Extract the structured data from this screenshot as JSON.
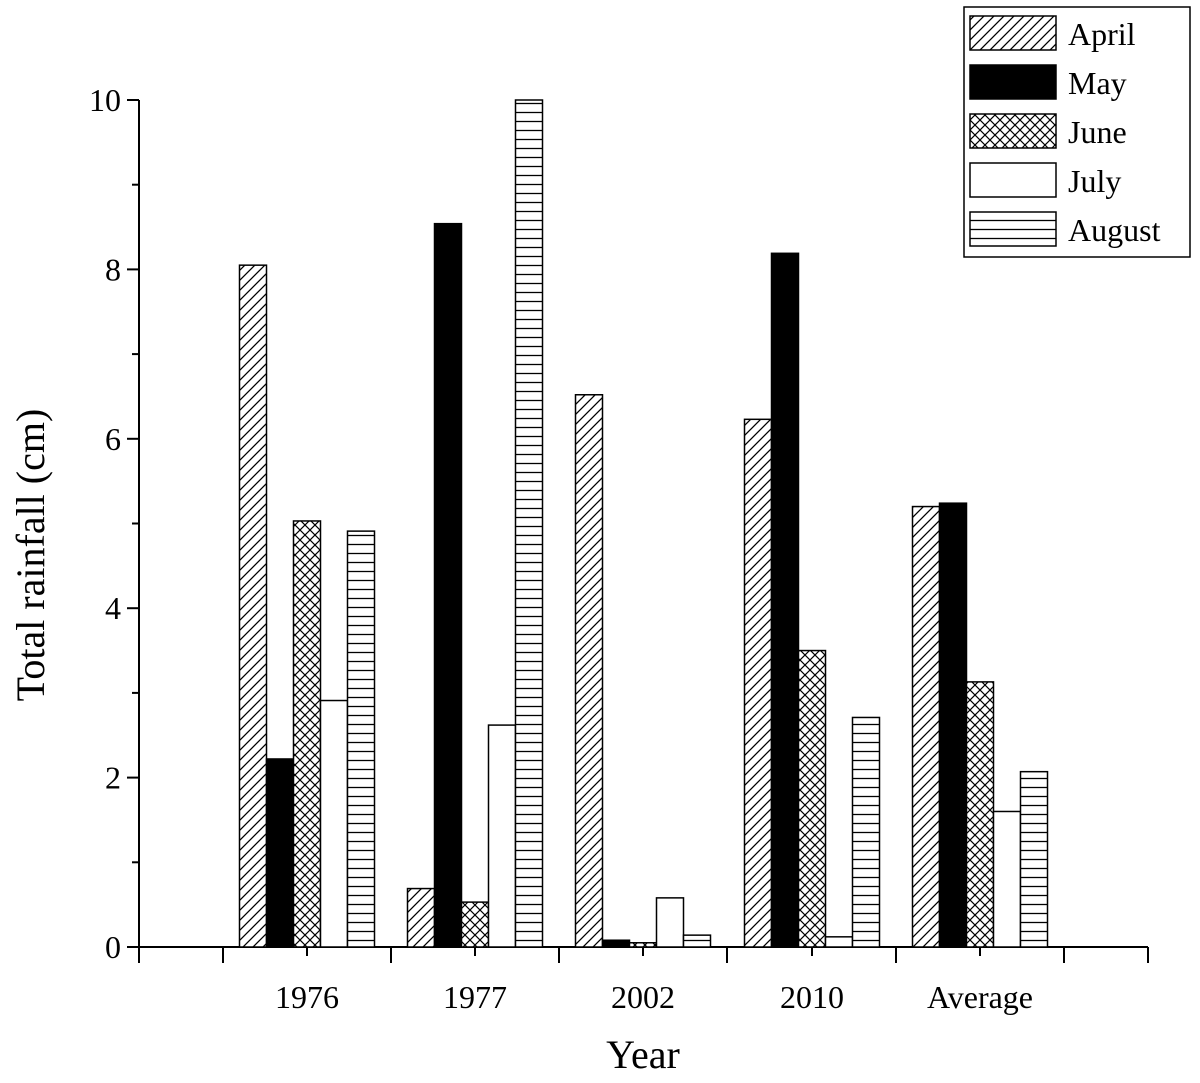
{
  "chart_data": {
    "type": "bar",
    "title": "",
    "xlabel": "Year",
    "ylabel": "Total rainfall (cm)",
    "categories": [
      "1976",
      "1977",
      "2002",
      "2010",
      "Average"
    ],
    "ylim": [
      0,
      10
    ],
    "yticks": [
      "0",
      "2",
      "4",
      "6",
      "8",
      "10"
    ],
    "grid": false,
    "legend_position": "top-right",
    "series": [
      {
        "name": "April",
        "pattern": "diagonal-hatch",
        "values": [
          8.05,
          0.69,
          6.52,
          6.23,
          5.2
        ]
      },
      {
        "name": "May",
        "pattern": "solid-black",
        "values": [
          2.22,
          8.54,
          0.08,
          8.19,
          5.24
        ]
      },
      {
        "name": "June",
        "pattern": "cross-hatch",
        "values": [
          5.03,
          0.53,
          0.05,
          3.5,
          3.13
        ]
      },
      {
        "name": "July",
        "pattern": "white",
        "values": [
          2.91,
          2.62,
          0.58,
          0.12,
          1.6
        ]
      },
      {
        "name": "August",
        "pattern": "horizontal-lines",
        "values": [
          4.91,
          10.0,
          0.14,
          2.71,
          2.07
        ]
      }
    ]
  },
  "colors": {
    "ink": "#000000",
    "background": "#ffffff"
  }
}
